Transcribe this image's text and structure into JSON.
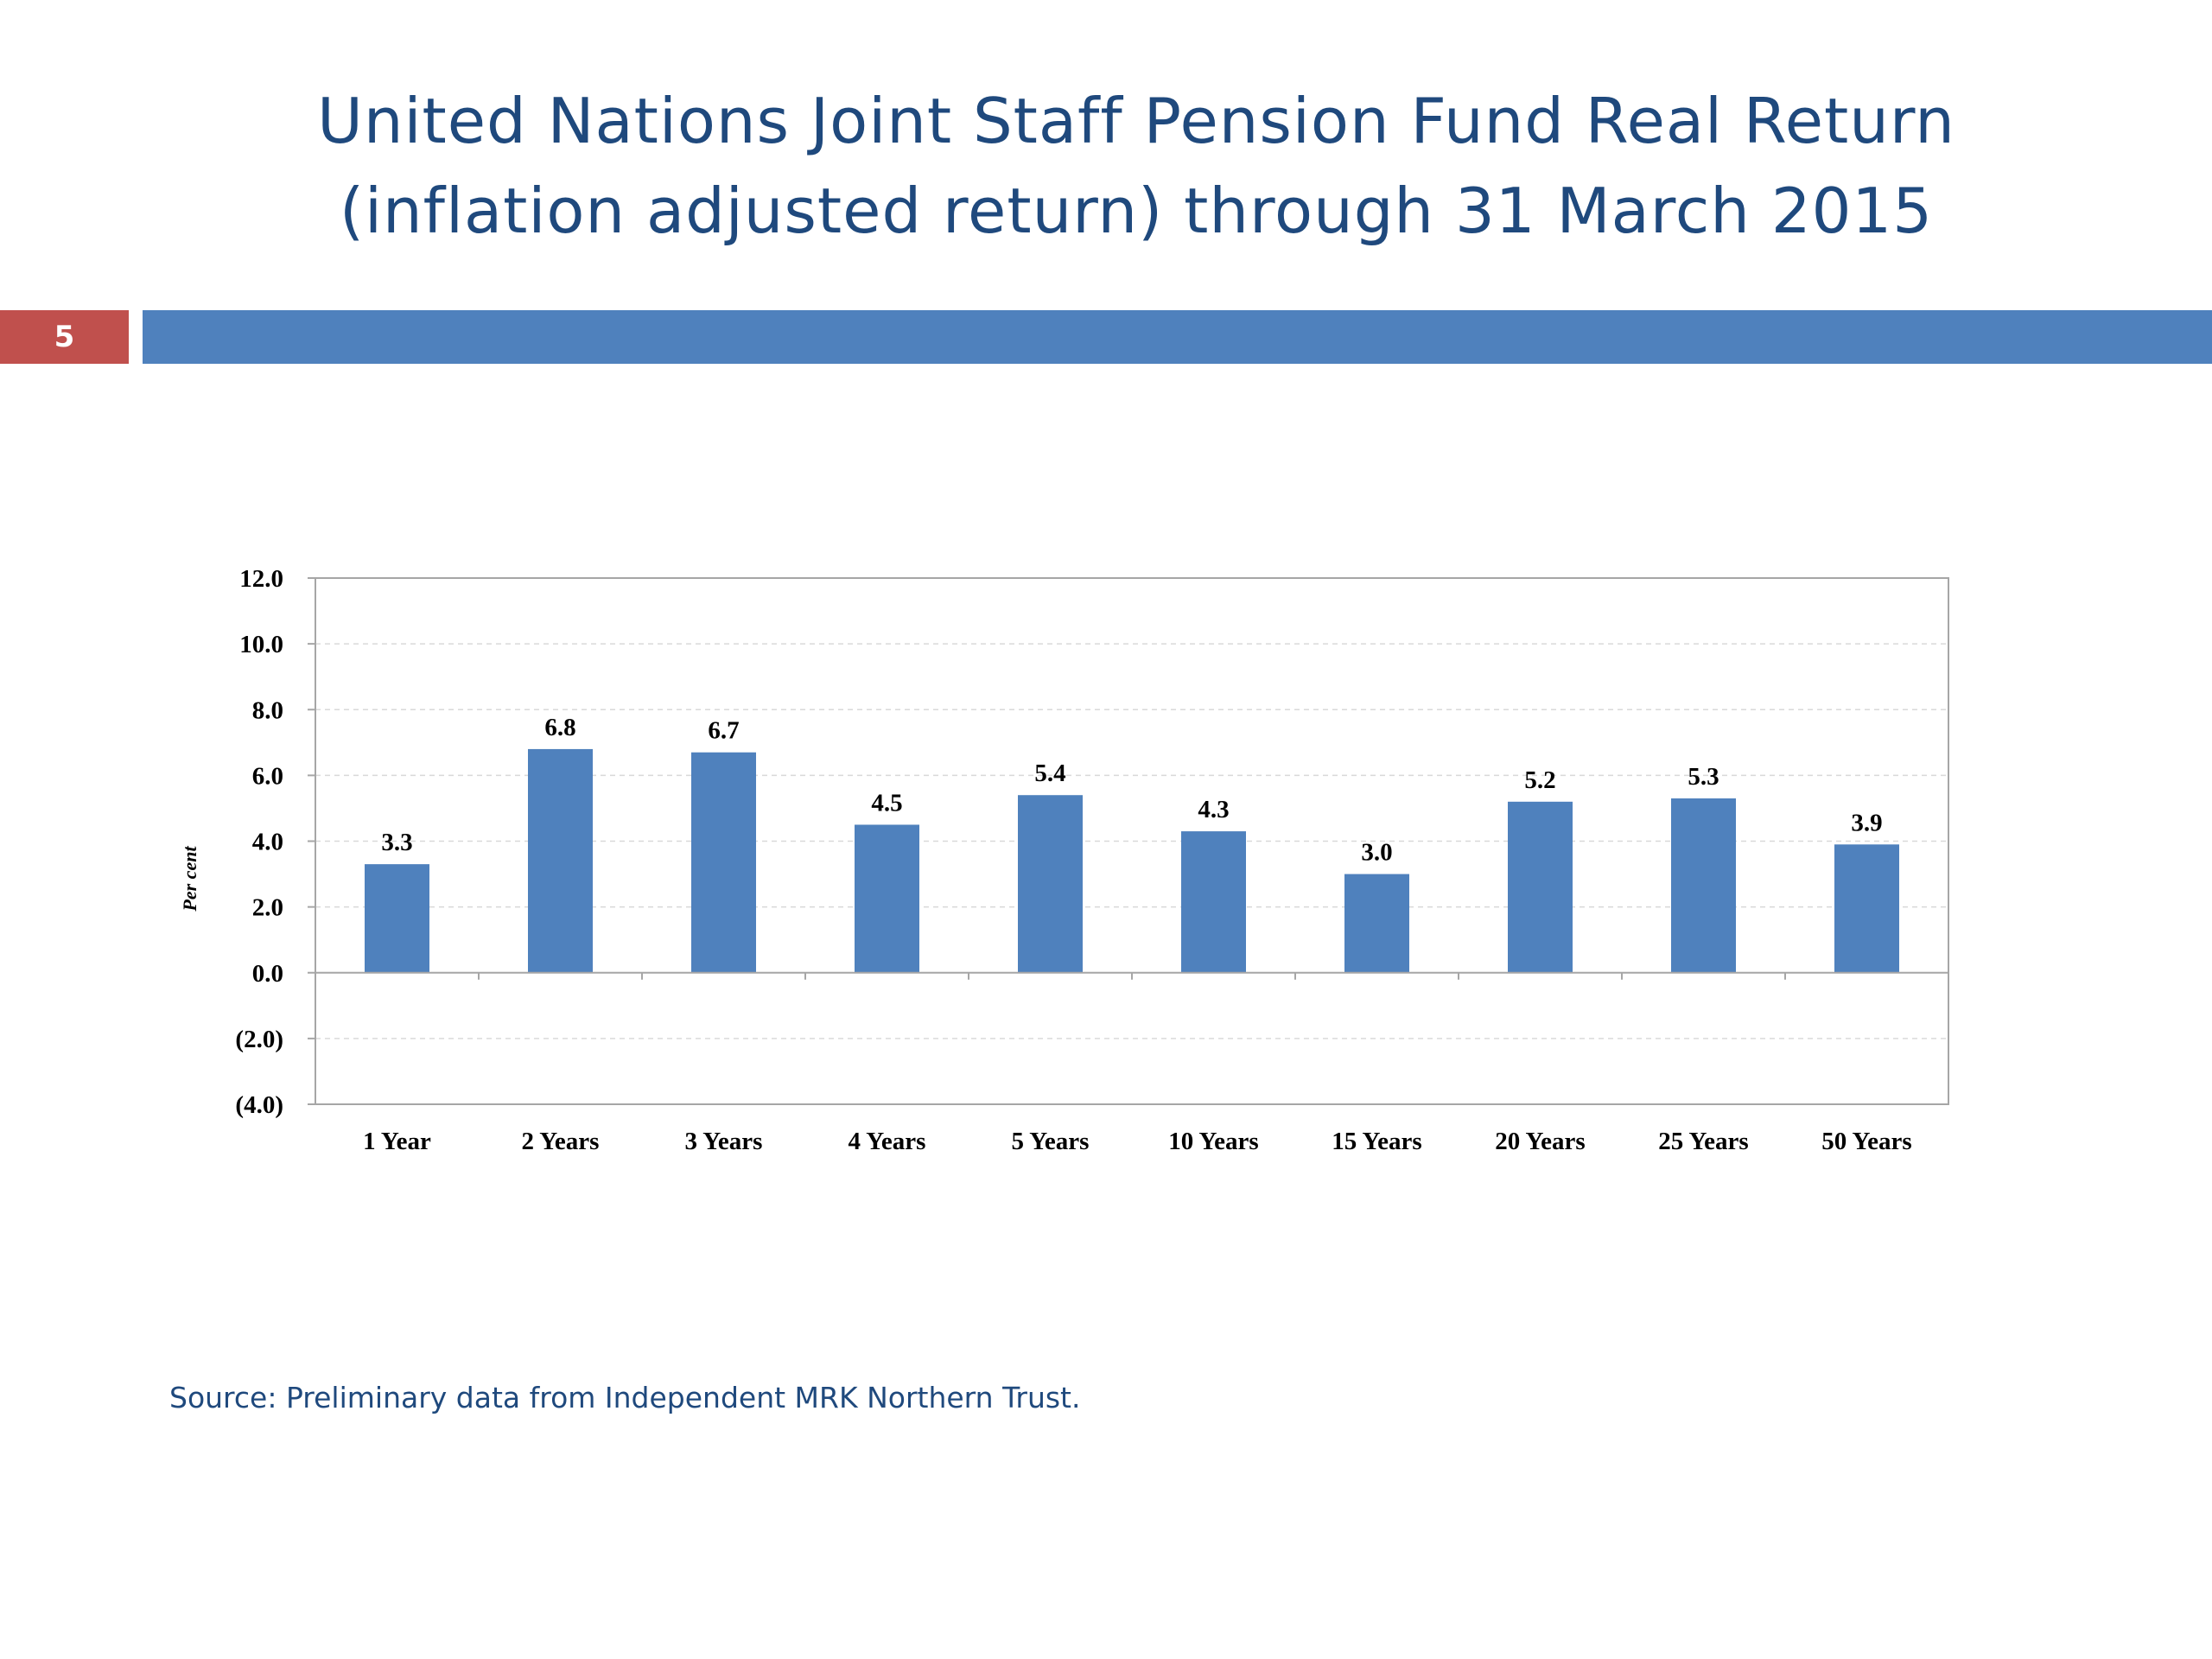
{
  "slide": {
    "title_line1": "United Nations Joint Staff Pension Fund Real Return",
    "title_line2": "(inflation adjusted return) through 31 March 2015",
    "number": "5",
    "source": "Source: Preliminary data from Independent MRK Northern Trust.",
    "colors": {
      "title": "#1f497d",
      "header_bar": "#4f81bd",
      "number_box": "#c0504d",
      "bar": "#4f81bd"
    }
  },
  "chart_data": {
    "type": "bar",
    "title": "",
    "xlabel": "",
    "ylabel": "Per cent",
    "categories": [
      "1 Year",
      "2 Years",
      "3 Years",
      "4 Years",
      "5 Years",
      "10 Years",
      "15 Years",
      "20 Years",
      "25 Years",
      "50 Years"
    ],
    "values": [
      3.3,
      6.8,
      6.7,
      4.5,
      5.4,
      4.3,
      3.0,
      5.2,
      5.3,
      3.9
    ],
    "value_labels": [
      "3.3",
      "6.8",
      "6.7",
      "4.5",
      "5.4",
      "4.3",
      "3.0",
      "5.2",
      "5.3",
      "3.9"
    ],
    "ylim": [
      -4,
      12
    ],
    "yticks": [
      12,
      10,
      8,
      6,
      4,
      2,
      0,
      -2,
      -4
    ],
    "ytick_labels": [
      "12.0",
      "10.0",
      "8.0",
      "6.0",
      "4.0",
      "2.0",
      "0.0",
      "(2.0)",
      "(4.0)"
    ],
    "grid": "horizontal dashed",
    "legend": "none"
  }
}
